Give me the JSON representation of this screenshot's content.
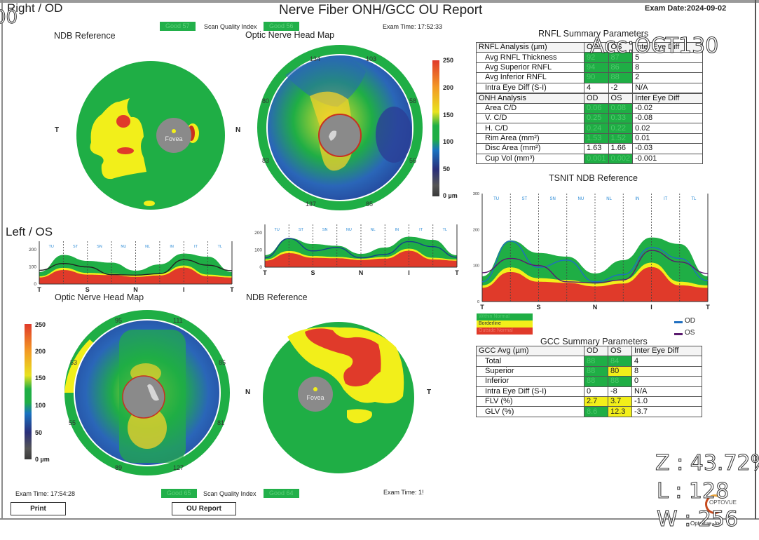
{
  "header": {
    "title": "Nerve Fiber ONH/GCC OU Report",
    "exam_date": "Exam Date:2024-09-02",
    "right_eye_label": "Right / OD",
    "left_eye_label": "Left / OS",
    "od_exam_time": "Exam Time: 17:52:33",
    "os_exam_time": "Exam Time: 17:54:28",
    "os_exam_time_right": "Exam Time: 1!"
  },
  "scan_quality": {
    "label": "Scan Quality Index",
    "top_left_badge": "Good 57",
    "top_right_badge": "Good 56",
    "bottom_left_badge": "Good 65",
    "bottom_right_badge": "Good 64"
  },
  "sections": {
    "od_ndb": "NDB Reference",
    "od_onh": "Optic Nerve Head Map",
    "os_onh": "Optic Nerve Head Map",
    "os_ndb": "NDB Reference",
    "rnfl_summary": "RNFL Summary Parameters",
    "tsnit": "TSNIT NDB Reference",
    "gcc_summary": "GCC Summary Parameters"
  },
  "maps": {
    "od_ndb": {
      "left": "T",
      "right": "N",
      "center": "Fovea"
    },
    "os_ndb": {
      "left": "N",
      "right": "T",
      "center": "Fovea"
    },
    "od_onh_sectors": [
      "134",
      "103",
      "58",
      "56",
      "85",
      "137",
      "83",
      "80"
    ],
    "os_onh_sectors": [
      "95",
      "111",
      "85",
      "81",
      "127",
      "89",
      "55",
      "53"
    ],
    "colorbar_ticks": [
      "250",
      "200",
      "150",
      "100",
      "50",
      "0 µm"
    ]
  },
  "rnfl_table": {
    "header": [
      "RNFL Analysis (µm)",
      "OD",
      "OS",
      "Inter Eye Diff"
    ],
    "rows": [
      {
        "label": "Avg RNFL Thickness",
        "od": "92",
        "os": "87",
        "diff": "5",
        "od_s": "g",
        "os_s": "g"
      },
      {
        "label": "Avg Superior RNFL",
        "od": "94",
        "os": "86",
        "diff": "8",
        "od_s": "g",
        "os_s": "g"
      },
      {
        "label": "Avg Inferior RNFL",
        "od": "90",
        "os": "88",
        "diff": "2",
        "od_s": "g",
        "os_s": "g"
      },
      {
        "label": "Intra Eye Diff  (S-I)",
        "od": "4",
        "os": "-2",
        "diff": "N/A",
        "od_s": "",
        "os_s": ""
      }
    ],
    "onh_header": [
      "ONH Analysis",
      "OD",
      "OS",
      "Inter Eye Diff"
    ],
    "onh_rows": [
      {
        "label": "Area C/D",
        "od": "0.06",
        "os": "0.08",
        "diff": "-0.02",
        "od_s": "g",
        "os_s": "g"
      },
      {
        "label": "V. C/D",
        "od": "0.25",
        "os": "0.33",
        "diff": "-0.08",
        "od_s": "g",
        "os_s": "g"
      },
      {
        "label": "H. C/D",
        "od": "0.24",
        "os": "0.22",
        "diff": "0.02",
        "od_s": "g",
        "os_s": "g"
      },
      {
        "label": "Rim Area (mm²)",
        "od": "1.53",
        "os": "1.52",
        "diff": "0.01",
        "od_s": "g",
        "os_s": "g"
      },
      {
        "label": "Disc Area (mm²)",
        "od": "1.63",
        "os": "1.66",
        "diff": "-0.03",
        "od_s": "",
        "os_s": ""
      },
      {
        "label": "Cup Vol (mm³)",
        "od": "0.001",
        "os": "0.002",
        "diff": "-0.001",
        "od_s": "g",
        "os_s": "g"
      }
    ]
  },
  "gcc_table": {
    "header": [
      "GCC Avg (µm)",
      "OD",
      "OS",
      "Inter Eye Diff"
    ],
    "rows": [
      {
        "label": "Total",
        "od": "88",
        "os": "84",
        "diff": "4",
        "od_s": "g",
        "os_s": "g"
      },
      {
        "label": "Superior",
        "od": "88",
        "os": "80",
        "diff": "8",
        "od_s": "g",
        "os_s": "y"
      },
      {
        "label": "Inferior",
        "od": "88",
        "os": "88",
        "diff": "0",
        "od_s": "g",
        "os_s": "g"
      },
      {
        "label": "Intra Eye Diff  (S-I)",
        "od": "0",
        "os": "-8",
        "diff": "N/A",
        "od_s": "",
        "os_s": ""
      },
      {
        "label": "FLV (%)",
        "od": "2.7",
        "os": "3.7",
        "diff": "-1.0",
        "od_s": "y",
        "os_s": "y"
      },
      {
        "label": "GLV (%)",
        "od": "8.6",
        "os": "12.3",
        "diff": "-3.7",
        "od_s": "g",
        "os_s": "y"
      }
    ]
  },
  "tsnit": {
    "sectors": [
      "TU",
      "ST",
      "SN",
      "NU",
      "NL",
      "IN",
      "IT",
      "TL"
    ],
    "x_labels": [
      "T",
      "S",
      "N",
      "I",
      "T"
    ],
    "y_ticks": [
      "300",
      "200",
      "100",
      "0"
    ],
    "small_y_ticks": [
      "200",
      "100",
      "0"
    ],
    "legend": [
      "Within Normal",
      "Borderline",
      "Outside Normal"
    ],
    "series_legend": [
      {
        "name": "OD",
        "color": "#1f6fc0"
      },
      {
        "name": "OS",
        "color": "#5a1a6e"
      }
    ]
  },
  "buttons": {
    "print": "Print",
    "ou_report": "OU Report"
  },
  "viewer_overlay": {
    "acc": "Acc:OCT130",
    "zoom": "Z : 43.72%",
    "level": "L : 128",
    "width": "W : 256",
    "left_fragment": "00"
  },
  "logo": {
    "brand": "OPTOVUE",
    "footer": "Optovue, Inc."
  },
  "colors": {
    "within_normal": "#1fae45",
    "borderline": "#f2ef1a",
    "outside_normal": "#e03a2a",
    "od_line": "#1f6fc0",
    "os_line": "#5a1a6e"
  }
}
